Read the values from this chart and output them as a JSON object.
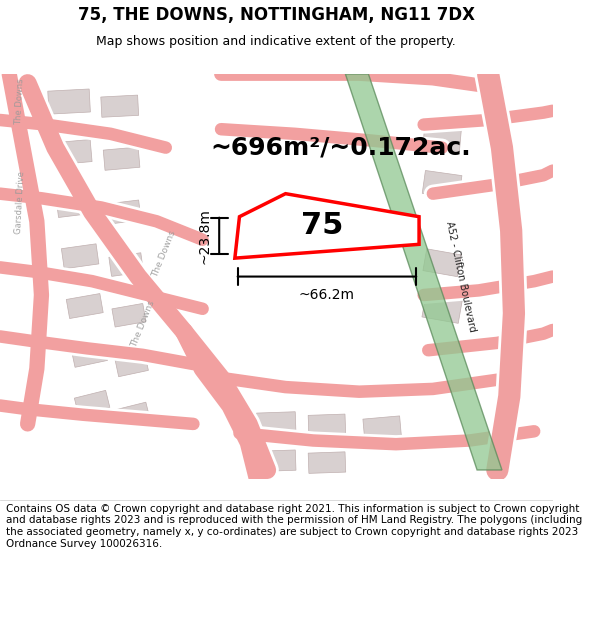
{
  "title": "75, THE DOWNS, NOTTINGHAM, NG11 7DX",
  "subtitle": "Map shows position and indicative extent of the property.",
  "footer": "Contains OS data © Crown copyright and database right 2021. This information is subject to Crown copyright and database rights 2023 and is reproduced with the permission of HM Land Registry. The polygons (including the associated geometry, namely x, y co-ordinates) are subject to Crown copyright and database rights 2023 Ordnance Survey 100026316.",
  "area_label": "~696m²/~0.172ac.",
  "width_label": "~66.2m",
  "height_label": "~23.8m",
  "plot_number": "75",
  "map_bg_color": "#fcf7f7",
  "road_color": "#f2a0a0",
  "building_color": "#d8d0d0",
  "building_outline": "#c0b0b0",
  "plot_outline": "#ff0000",
  "green_strip_color": "#90c890",
  "green_strip_outline": "#5a8a5a",
  "road_label_color": "#999999",
  "title_fontsize": 12,
  "subtitle_fontsize": 9,
  "footer_fontsize": 7.5,
  "area_fontsize": 18,
  "plot_num_fontsize": 22,
  "dim_fontsize": 10
}
